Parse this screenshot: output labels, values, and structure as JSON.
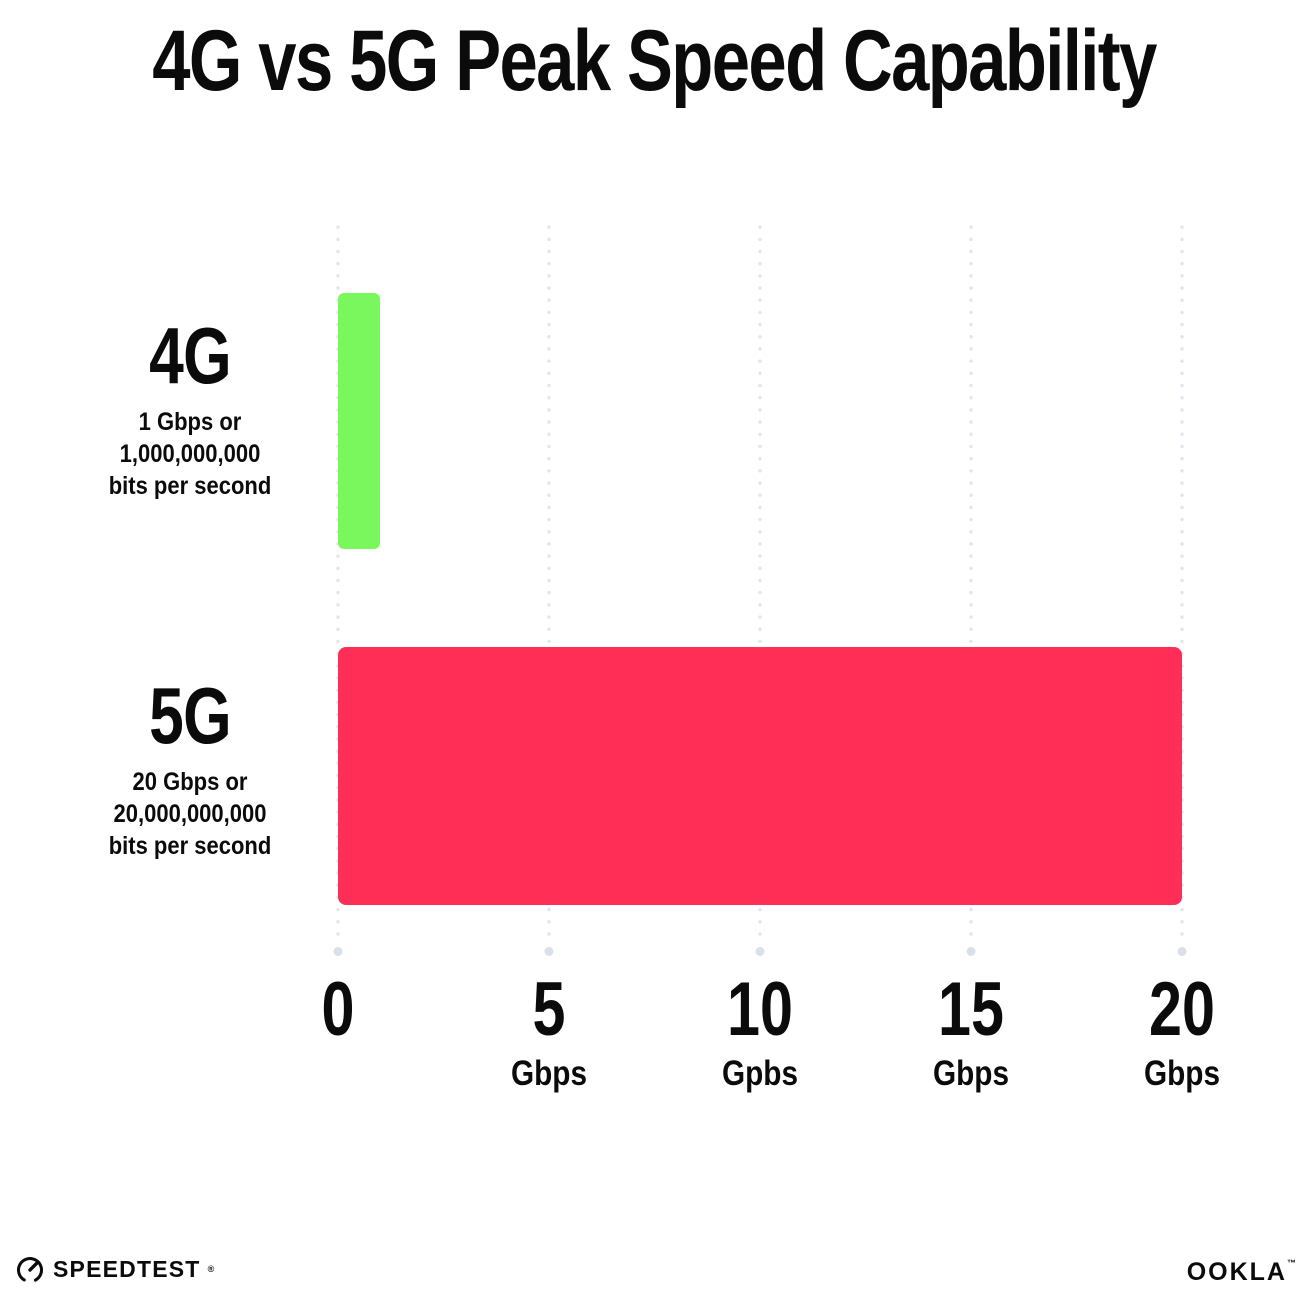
{
  "title": "4G vs 5G Peak Speed Capability",
  "chart_data": {
    "type": "bar",
    "orientation": "horizontal",
    "title": "4G vs 5G Peak Speed Capability",
    "categories": [
      "4G",
      "5G"
    ],
    "values": [
      1,
      20
    ],
    "value_unit": "Gbps",
    "xlim": [
      0,
      20
    ],
    "x_ticks": [
      0,
      5,
      10,
      15,
      20
    ],
    "grid": "vertical-dotted",
    "legend": "none",
    "bar_colors": [
      "#7bf75e",
      "#ff2e57"
    ],
    "grid_dot_color": "#e3e6ef"
  },
  "rows": [
    {
      "label": "4G",
      "description_lines": [
        "1 Gbps or",
        "1,000,000,000",
        "bits per second"
      ],
      "value_gbps": 1,
      "color": "#7bf75e"
    },
    {
      "label": "5G",
      "description_lines": [
        "20 Gbps or",
        "20,000,000,000",
        "bits per second"
      ],
      "value_gbps": 20,
      "color": "#ff2e57"
    }
  ],
  "x_axis": {
    "ticks": [
      {
        "value": "0",
        "unit": ""
      },
      {
        "value": "5",
        "unit": "Gbps"
      },
      {
        "value": "10",
        "unit": "Gpbs"
      },
      {
        "value": "15",
        "unit": "Gbps"
      },
      {
        "value": "20",
        "unit": "Gbps"
      }
    ]
  },
  "footer": {
    "speedtest_label": "SPEEDTEST",
    "speedtest_trademark": "®",
    "ookla_label": "OOKLA",
    "ookla_trademark": "™"
  }
}
